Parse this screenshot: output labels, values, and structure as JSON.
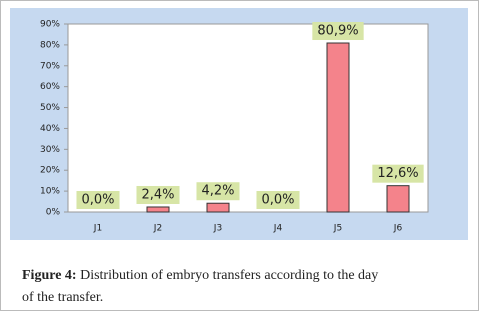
{
  "chart_data": {
    "type": "bar",
    "categories": [
      "J1",
      "J2",
      "J3",
      "J4",
      "J5",
      "J6"
    ],
    "values": [
      0,
      2.4,
      4.2,
      0,
      80.9,
      12.6
    ],
    "value_labels": [
      "0,0%",
      "2,4%",
      "4,2%",
      "0,0%",
      "80,9%",
      "12,6%"
    ],
    "color": "#f4838b",
    "ylim": [
      0,
      90
    ],
    "yticks": [
      {
        "value": 0,
        "label": "0%"
      },
      {
        "value": 10,
        "label": "10%"
      },
      {
        "value": 20,
        "label": "20%"
      },
      {
        "value": 30,
        "label": "30%"
      },
      {
        "value": 40,
        "label": "40%"
      },
      {
        "value": 50,
        "label": "50%"
      },
      {
        "value": 60,
        "label": "60%"
      },
      {
        "value": 70,
        "label": "70%"
      },
      {
        "value": 80,
        "label": "80%"
      },
      {
        "value": 90,
        "label": "90%"
      }
    ],
    "grid": false,
    "caption_label": "Figure 4:",
    "caption_lines": [
      "Distribution of embryo transfers according to the day",
      "of the transfer."
    ]
  }
}
